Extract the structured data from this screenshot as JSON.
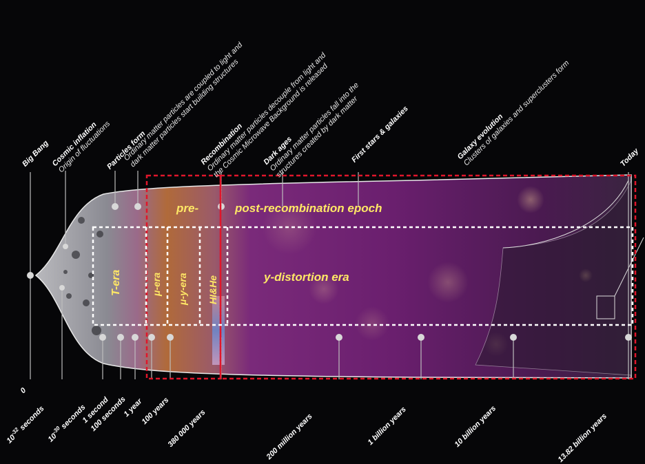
{
  "events": [
    {
      "title": "Big Bang",
      "desc": ""
    },
    {
      "title": "Cosmic inflation",
      "desc": "Origin of fluctuations"
    },
    {
      "title": "Particles form",
      "desc": ""
    },
    {
      "title": "",
      "desc": "Ordinary matter particles are coupled to light and",
      "desc2": "dark matter particles start building structures"
    },
    {
      "title": "Recombination",
      "desc": "Ordinary matter particles decouple from light and",
      "desc2": "the Cosmic Microwave Background is released"
    },
    {
      "title": "Dark ages",
      "desc": "Ordinary matter particles fall into the",
      "desc2": "structures created by dark matter"
    },
    {
      "title": "First stars & galaxies",
      "desc": ""
    },
    {
      "title": "Galaxy evolution",
      "desc": "Clusters of galaxies and superclusters form"
    },
    {
      "title": "Today",
      "desc": ""
    }
  ],
  "times": {
    "t0": "0",
    "t1_base": "10",
    "t1_exp": "-32",
    "t1_unit": " seconds",
    "t2_base": "10",
    "t2_exp": "-30",
    "t2_unit": " seconds",
    "t3": "1 second",
    "t4": "100 seconds",
    "t5": "1 year",
    "t6": "100 years",
    "t7": "380 000 years",
    "t8": "200 million years",
    "t9": "1 billion years",
    "t10": "10 billion years",
    "t11": "13.82 billion years"
  },
  "eras": {
    "pre": "pre-",
    "post": "post-recombination epoch",
    "t_era": "T-era",
    "mu_era": "μ-era",
    "mu_y_era": "μ-y-era",
    "hi_he": "HI&He",
    "y_era": "y-distortion era"
  },
  "colors": {
    "red_box": "#e0162b",
    "white_box": "#ffffff",
    "era_text": "#ffe866",
    "universe_purple": "#6a1f6e"
  }
}
